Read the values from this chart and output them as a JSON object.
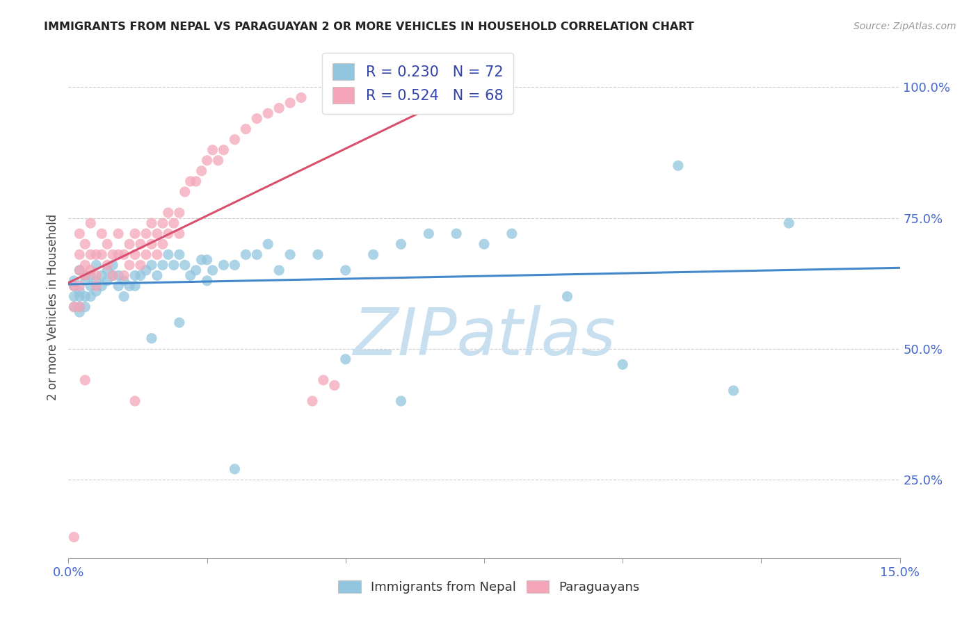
{
  "title": "IMMIGRANTS FROM NEPAL VS PARAGUAYAN 2 OR MORE VEHICLES IN HOUSEHOLD CORRELATION CHART",
  "source": "Source: ZipAtlas.com",
  "ylabel": "2 or more Vehicles in Household",
  "legend1_label": "Immigrants from Nepal",
  "legend2_label": "Paraguayans",
  "R1": 0.23,
  "N1": 72,
  "R2": 0.524,
  "N2": 68,
  "color_blue": "#92c5de",
  "color_pink": "#f4a6b8",
  "line_blue": "#4488cc",
  "line_pink": "#d94f6e",
  "watermark_text": "ZIPatlas",
  "watermark_color": "#c8dff0",
  "xlim": [
    0.0,
    0.15
  ],
  "ylim": [
    0.1,
    1.05
  ],
  "nepal_x": [
    0.001,
    0.001,
    0.001,
    0.001,
    0.002,
    0.002,
    0.002,
    0.002,
    0.002,
    0.003,
    0.003,
    0.003,
    0.003,
    0.004,
    0.004,
    0.004,
    0.005,
    0.005,
    0.005,
    0.006,
    0.006,
    0.007,
    0.007,
    0.008,
    0.008,
    0.009,
    0.009,
    0.01,
    0.01,
    0.011,
    0.012,
    0.012,
    0.013,
    0.014,
    0.015,
    0.016,
    0.017,
    0.018,
    0.019,
    0.02,
    0.021,
    0.022,
    0.023,
    0.024,
    0.025,
    0.026,
    0.028,
    0.03,
    0.032,
    0.034,
    0.036,
    0.038,
    0.04,
    0.045,
    0.05,
    0.055,
    0.06,
    0.065,
    0.07,
    0.075,
    0.08,
    0.09,
    0.1,
    0.11,
    0.12,
    0.015,
    0.02,
    0.025,
    0.03,
    0.05,
    0.06,
    0.13
  ],
  "nepal_y": [
    0.62,
    0.63,
    0.6,
    0.58,
    0.65,
    0.61,
    0.6,
    0.58,
    0.57,
    0.64,
    0.63,
    0.6,
    0.58,
    0.64,
    0.62,
    0.6,
    0.66,
    0.63,
    0.61,
    0.64,
    0.62,
    0.65,
    0.63,
    0.66,
    0.64,
    0.64,
    0.62,
    0.63,
    0.6,
    0.62,
    0.64,
    0.62,
    0.64,
    0.65,
    0.66,
    0.64,
    0.66,
    0.68,
    0.66,
    0.68,
    0.66,
    0.64,
    0.65,
    0.67,
    0.67,
    0.65,
    0.66,
    0.66,
    0.68,
    0.68,
    0.7,
    0.65,
    0.68,
    0.68,
    0.65,
    0.68,
    0.7,
    0.72,
    0.72,
    0.7,
    0.72,
    0.6,
    0.47,
    0.85,
    0.42,
    0.52,
    0.55,
    0.63,
    0.27,
    0.48,
    0.4,
    0.74
  ],
  "paraguay_x": [
    0.001,
    0.001,
    0.001,
    0.002,
    0.002,
    0.002,
    0.002,
    0.003,
    0.003,
    0.003,
    0.004,
    0.004,
    0.004,
    0.005,
    0.005,
    0.005,
    0.006,
    0.006,
    0.007,
    0.007,
    0.008,
    0.008,
    0.009,
    0.009,
    0.01,
    0.01,
    0.011,
    0.011,
    0.012,
    0.012,
    0.013,
    0.013,
    0.014,
    0.014,
    0.015,
    0.015,
    0.016,
    0.016,
    0.017,
    0.017,
    0.018,
    0.018,
    0.019,
    0.02,
    0.02,
    0.021,
    0.022,
    0.023,
    0.024,
    0.025,
    0.026,
    0.027,
    0.028,
    0.03,
    0.032,
    0.034,
    0.036,
    0.038,
    0.04,
    0.042,
    0.044,
    0.046,
    0.048,
    0.05,
    0.052,
    0.002,
    0.003,
    0.012
  ],
  "paraguay_y": [
    0.62,
    0.58,
    0.14,
    0.72,
    0.68,
    0.65,
    0.62,
    0.7,
    0.66,
    0.64,
    0.74,
    0.68,
    0.65,
    0.68,
    0.64,
    0.62,
    0.72,
    0.68,
    0.7,
    0.66,
    0.68,
    0.64,
    0.72,
    0.68,
    0.68,
    0.64,
    0.7,
    0.66,
    0.72,
    0.68,
    0.7,
    0.66,
    0.72,
    0.68,
    0.74,
    0.7,
    0.72,
    0.68,
    0.74,
    0.7,
    0.76,
    0.72,
    0.74,
    0.76,
    0.72,
    0.8,
    0.82,
    0.82,
    0.84,
    0.86,
    0.88,
    0.86,
    0.88,
    0.9,
    0.92,
    0.94,
    0.95,
    0.96,
    0.97,
    0.98,
    0.4,
    0.44,
    0.43,
    0.97,
    0.98,
    0.58,
    0.44,
    0.4
  ]
}
